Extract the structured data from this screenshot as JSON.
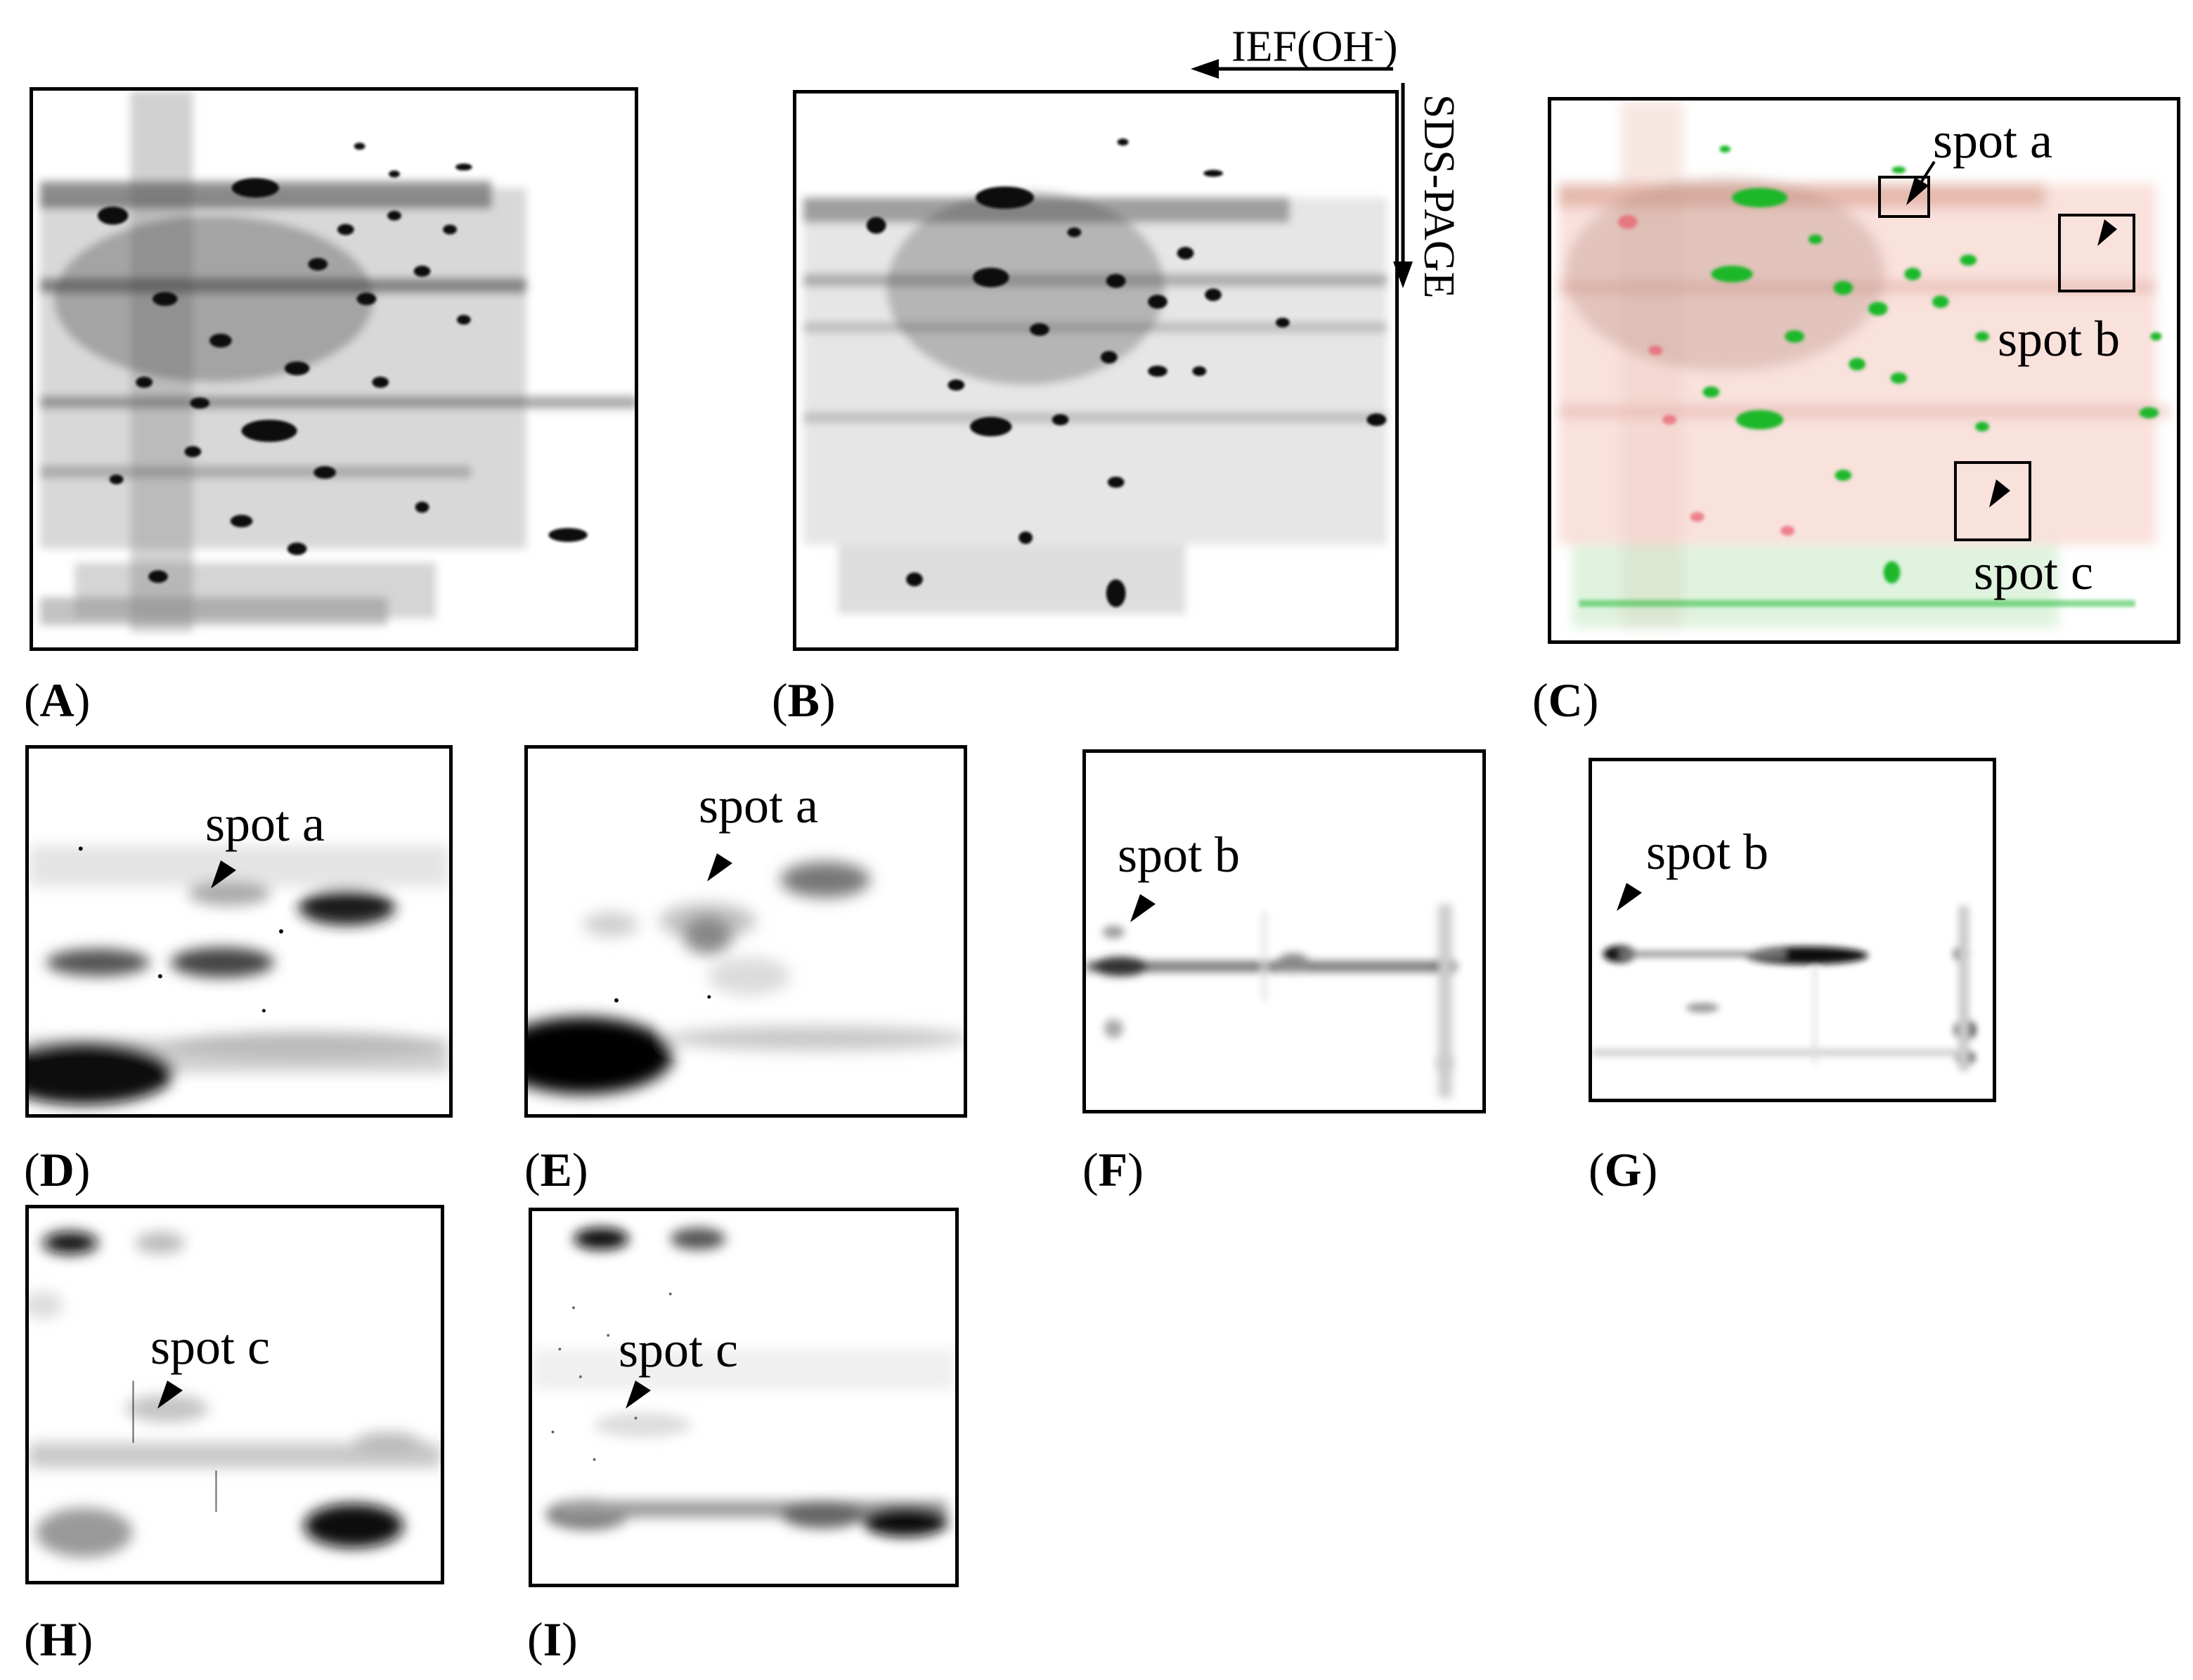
{
  "panels": [
    {
      "id": "A",
      "label": "A"
    },
    {
      "id": "B",
      "label": "B"
    },
    {
      "id": "C",
      "label": "C"
    },
    {
      "id": "D",
      "label": "D"
    },
    {
      "id": "E",
      "label": "E"
    },
    {
      "id": "F",
      "label": "F"
    },
    {
      "id": "G",
      "label": "G"
    },
    {
      "id": "H",
      "label": "H"
    },
    {
      "id": "I",
      "label": "I"
    }
  ],
  "axes": {
    "ief": "IEF(OH",
    "ief_sup": "-",
    "ief_close": ")",
    "sds": "SDS-PAGE"
  },
  "spot_labels": {
    "a": "spot a",
    "b": "spot b",
    "c": "spot c"
  },
  "colors": {
    "overlay_green": "#1bb82a",
    "overlay_red": "#f4a0a0",
    "gel_dark": "#111111"
  }
}
